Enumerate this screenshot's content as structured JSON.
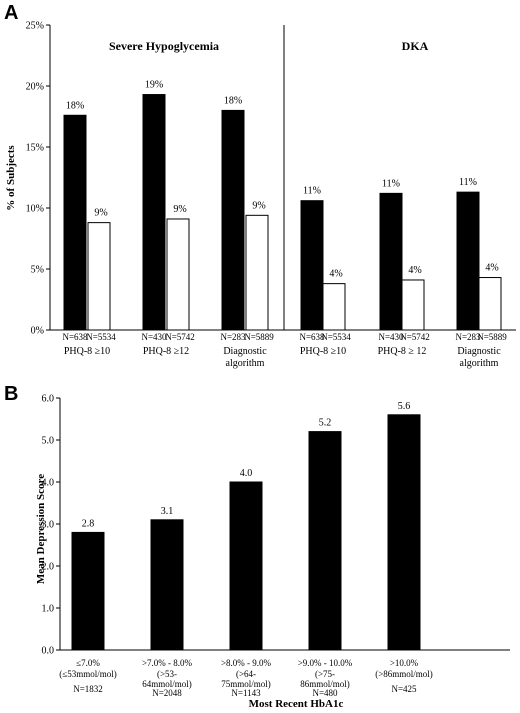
{
  "chart_data": [
    {
      "panel": "A",
      "type": "bar",
      "ylabel": "% of Subjects",
      "ylim": [
        0,
        25
      ],
      "yticks": [
        "0%",
        "5%",
        "10%",
        "15%",
        "20%",
        "25%"
      ],
      "grid": false,
      "groups": [
        {
          "title": "Severe Hypoglycemia",
          "bars": [
            {
              "category": "PHQ-8 ≥10",
              "values": [
                17.6,
                8.8
              ],
              "labels": [
                "18%",
                "9%"
              ],
              "n": [
                "N=638",
                "N=5534"
              ]
            },
            {
              "category": "PHQ-8 ≥12",
              "values": [
                19.3,
                9.1
              ],
              "labels": [
                "19%",
                "9%"
              ],
              "n": [
                "N=430",
                "N=5742"
              ]
            },
            {
              "category": "Diagnostic algorithm",
              "values": [
                18.0,
                9.4
              ],
              "labels": [
                "18%",
                "9%"
              ],
              "n": [
                "N=283",
                "N=5889"
              ]
            }
          ]
        },
        {
          "title": "DKA",
          "bars": [
            {
              "category": "PHQ-8 ≥10",
              "values": [
                10.6,
                3.8
              ],
              "labels": [
                "11%",
                "4%"
              ],
              "n": [
                "N=638",
                "N=5534"
              ]
            },
            {
              "category": "PHQ-8 ≥ 12",
              "values": [
                11.2,
                4.1
              ],
              "labels": [
                "11%",
                "4%"
              ],
              "n": [
                "N=430",
                "N=5742"
              ]
            },
            {
              "category": "Diagnostic algorithm",
              "values": [
                11.3,
                4.3
              ],
              "labels": [
                "11%",
                "4%"
              ],
              "n": [
                "N=283",
                "N=5889"
              ]
            }
          ]
        }
      ],
      "colors": {
        "series1": "#000000",
        "series2": "#ffffff"
      }
    },
    {
      "panel": "B",
      "type": "bar",
      "ylabel": "Mean Depression Score",
      "xlabel": "Most Recent HbA1c",
      "ylim": [
        0,
        6
      ],
      "yticks": [
        "0.0",
        "1.0",
        "2.0",
        "3.0",
        "4.0",
        "5.0",
        "6.0"
      ],
      "grid": false,
      "categories": [
        {
          "line1": "≤7.0%",
          "line2": "(≤53mmol/mol)",
          "line3": "",
          "n": "N=1832"
        },
        {
          "line1": ">7.0% - 8.0%",
          "line2": "(>53-",
          "line3": "64mmol/mol)",
          "n": "N=2048"
        },
        {
          "line1": ">8.0% - 9.0%",
          "line2": "(>64-",
          "line3": "75mmol/mol)",
          "n": "N=1143"
        },
        {
          "line1": ">9.0% - 10.0%",
          "line2": "(>75-",
          "line3": "86mmol/mol)",
          "n": "N=480"
        },
        {
          "line1": ">10.0%",
          "line2": "(>86mmol/mol)",
          "line3": "",
          "n": "N=425"
        }
      ],
      "values": [
        2.8,
        3.1,
        4.0,
        5.2,
        5.6
      ],
      "labels": [
        "2.8",
        "3.1",
        "4.0",
        "5.2",
        "5.6"
      ],
      "colors": {
        "bar": "#000000"
      }
    }
  ]
}
